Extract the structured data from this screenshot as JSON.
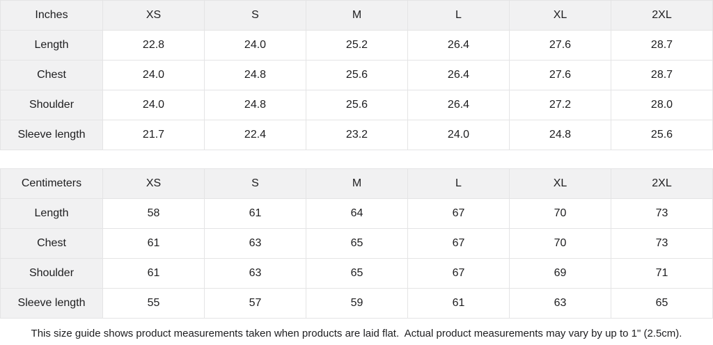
{
  "colors": {
    "header_bg": "#f1f1f2",
    "cell_bg": "#ffffff",
    "border": "#e4e4e5",
    "text": "#1d1d1f"
  },
  "tables": [
    {
      "unit_label": "Inches",
      "sizes": [
        "XS",
        "S",
        "M",
        "L",
        "XL",
        "2XL"
      ],
      "rows": [
        {
          "label": "Length",
          "values": [
            "22.8",
            "24.0",
            "25.2",
            "26.4",
            "27.6",
            "28.7"
          ]
        },
        {
          "label": "Chest",
          "values": [
            "24.0",
            "24.8",
            "25.6",
            "26.4",
            "27.6",
            "28.7"
          ]
        },
        {
          "label": "Shoulder",
          "values": [
            "24.0",
            "24.8",
            "25.6",
            "26.4",
            "27.2",
            "28.0"
          ]
        },
        {
          "label": "Sleeve length",
          "values": [
            "21.7",
            "22.4",
            "23.2",
            "24.0",
            "24.8",
            "25.6"
          ]
        }
      ]
    },
    {
      "unit_label": "Centimeters",
      "sizes": [
        "XS",
        "S",
        "M",
        "L",
        "XL",
        "2XL"
      ],
      "rows": [
        {
          "label": "Length",
          "values": [
            "58",
            "61",
            "64",
            "67",
            "70",
            "73"
          ]
        },
        {
          "label": "Chest",
          "values": [
            "61",
            "63",
            "65",
            "67",
            "70",
            "73"
          ]
        },
        {
          "label": "Shoulder",
          "values": [
            "61",
            "63",
            "65",
            "67",
            "69",
            "71"
          ]
        },
        {
          "label": "Sleeve length",
          "values": [
            "55",
            "57",
            "59",
            "61",
            "63",
            "65"
          ]
        }
      ]
    }
  ],
  "footer": {
    "note": "This size guide shows product measurements taken when products are laid flat.  Actual product measurements may vary by up to 1\" (2.5cm)."
  }
}
